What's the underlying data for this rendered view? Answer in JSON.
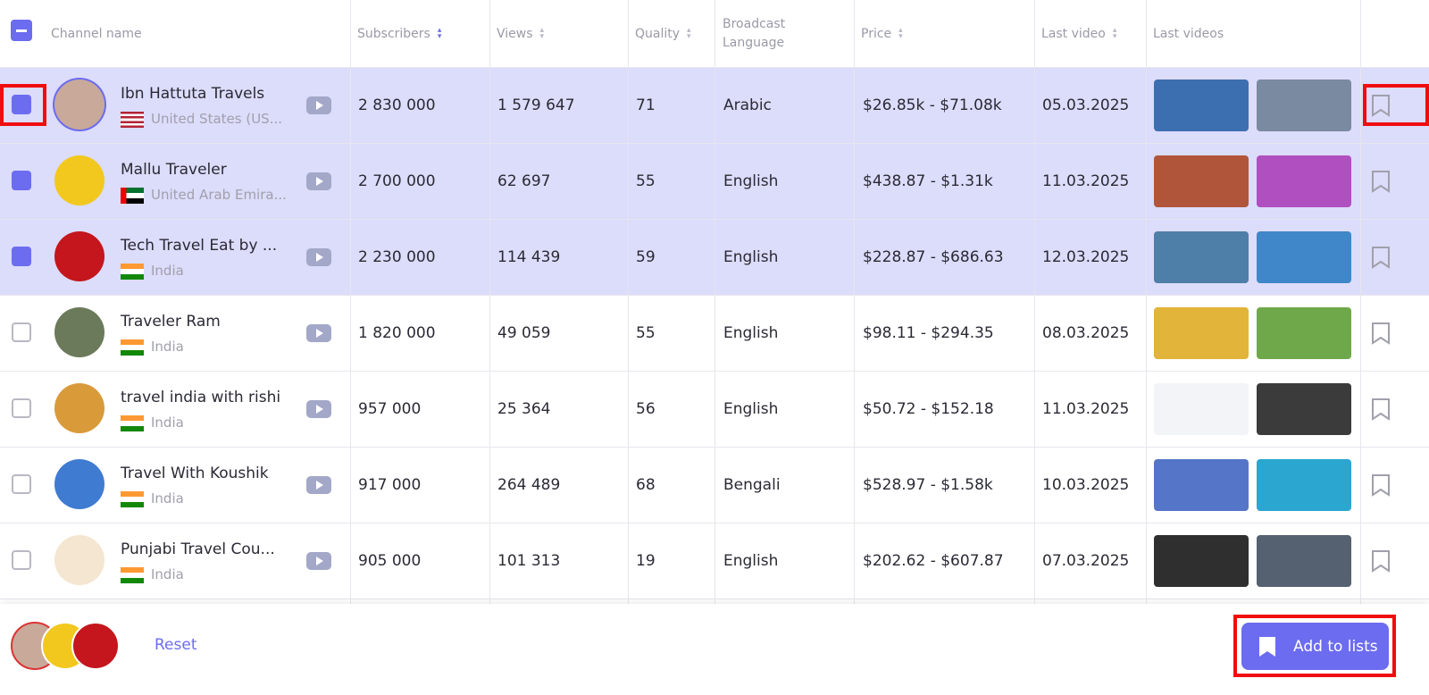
{
  "header": {
    "columns": [
      "Channel name",
      "Subscribers",
      "Views",
      "Quality",
      "Broadcast Language",
      "Price",
      "Last video",
      "Last videos"
    ]
  },
  "table": {
    "rows": [
      {
        "channel": "Ibn Hattuta Travels",
        "country": "United States (US...",
        "subscribers": "2 830 000",
        "views": "1 579 647",
        "quality": "71",
        "language": "Arabic",
        "price": "$26.85k - $71.08k",
        "last_video": "05.03.2025",
        "selected": true
      },
      {
        "channel": "Mallu Traveler",
        "country": "United Arab Emira...",
        "subscribers": "2 700 000",
        "views": "62 697",
        "quality": "55",
        "language": "English",
        "price": "$438.87 - $1.31k",
        "last_video": "11.03.2025",
        "selected": true
      },
      {
        "channel": "Tech Travel Eat by ...",
        "country": "India",
        "subscribers": "2 230 000",
        "views": "114 439",
        "quality": "59",
        "language": "English",
        "price": "$228.87 - $686.63",
        "last_video": "12.03.2025",
        "selected": true
      },
      {
        "channel": "Traveler Ram",
        "country": "India",
        "subscribers": "1 820 000",
        "views": "49 059",
        "quality": "55",
        "language": "English",
        "price": "$98.11 - $294.35",
        "last_video": "08.03.2025",
        "selected": false
      },
      {
        "channel": "travel india with rishi",
        "country": "India",
        "subscribers": "957 000",
        "views": "25 364",
        "quality": "56",
        "language": "English",
        "price": "$50.72 - $152.18",
        "last_video": "11.03.2025",
        "selected": false
      },
      {
        "channel": "Travel With Koushik",
        "country": "India",
        "subscribers": "917 000",
        "views": "264 489",
        "quality": "68",
        "language": "Bengali",
        "price": "$528.97 - $1.58k",
        "last_video": "10.03.2025",
        "selected": false
      },
      {
        "channel": "Punjabi Travel Cou...",
        "country": "India",
        "subscribers": "905 000",
        "views": "101 313",
        "quality": "19",
        "language": "English",
        "price": "$202.62 - $607.87",
        "last_video": "07.03.2025",
        "selected": false
      }
    ]
  },
  "footer": {
    "reset": "Reset",
    "button": "Add to lists"
  }
}
